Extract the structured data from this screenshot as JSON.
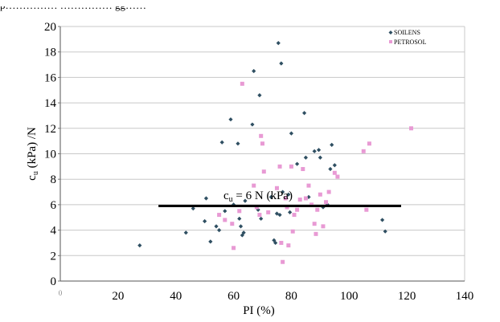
{
  "caption_fragment": "p…………… …………… gg……",
  "chart_data": {
    "type": "scatter",
    "title": "",
    "xlabel": "PI (%)",
    "ylabel_main": "c",
    "ylabel_sub": "u",
    "ylabel_rest": " (kPa) /N",
    "xlim": [
      0,
      140
    ],
    "ylim": [
      0,
      20
    ],
    "xticks": [
      0,
      20,
      40,
      60,
      80,
      100,
      120,
      140
    ],
    "yticks": [
      0,
      2,
      4,
      6,
      8,
      10,
      12,
      14,
      16,
      18,
      20
    ],
    "grid": "horizontal",
    "legend_position": "top-right",
    "series": [
      {
        "name": "SOILENS",
        "marker": "diamond",
        "color": "#2f4f62",
        "points": [
          [
            27.5,
            2.8
          ],
          [
            43.5,
            3.8
          ],
          [
            46.0,
            5.7
          ],
          [
            50.0,
            4.7
          ],
          [
            50.5,
            6.5
          ],
          [
            52.0,
            3.1
          ],
          [
            54.0,
            4.3
          ],
          [
            55.0,
            4.0
          ],
          [
            56.0,
            10.9
          ],
          [
            57.0,
            5.5
          ],
          [
            59.0,
            12.7
          ],
          [
            60.0,
            6.0
          ],
          [
            61.5,
            10.8
          ],
          [
            62.0,
            4.9
          ],
          [
            62.5,
            4.3
          ],
          [
            63.0,
            3.6
          ],
          [
            63.5,
            3.8
          ],
          [
            64.0,
            6.3
          ],
          [
            66.5,
            12.3
          ],
          [
            67.0,
            16.5
          ],
          [
            68.5,
            5.6
          ],
          [
            69.0,
            14.6
          ],
          [
            69.5,
            4.9
          ],
          [
            73.0,
            6.6
          ],
          [
            74.0,
            3.2
          ],
          [
            74.5,
            3.0
          ],
          [
            75.0,
            5.3
          ],
          [
            75.5,
            18.7
          ],
          [
            76.0,
            5.2
          ],
          [
            76.5,
            17.1
          ],
          [
            77.0,
            7.0
          ],
          [
            79.0,
            6.8
          ],
          [
            79.5,
            5.4
          ],
          [
            80.0,
            11.6
          ],
          [
            82.0,
            9.2
          ],
          [
            84.5,
            13.2
          ],
          [
            85.0,
            9.7
          ],
          [
            86.0,
            6.6
          ],
          [
            88.0,
            10.2
          ],
          [
            89.5,
            10.3
          ],
          [
            90.0,
            9.7
          ],
          [
            91.0,
            5.8
          ],
          [
            92.5,
            6.0
          ],
          [
            93.5,
            8.8
          ],
          [
            94.0,
            10.7
          ],
          [
            95.0,
            9.1
          ],
          [
            111.5,
            4.8
          ],
          [
            112.5,
            3.9
          ]
        ]
      },
      {
        "name": "PETROSOL",
        "marker": "square",
        "color": "#e89ad4",
        "points": [
          [
            55.0,
            5.2
          ],
          [
            57.0,
            4.8
          ],
          [
            59.5,
            4.5
          ],
          [
            60.0,
            2.6
          ],
          [
            62.0,
            5.5
          ],
          [
            63.0,
            15.5
          ],
          [
            67.0,
            7.5
          ],
          [
            68.0,
            5.8
          ],
          [
            69.0,
            5.2
          ],
          [
            69.5,
            11.4
          ],
          [
            70.0,
            10.8
          ],
          [
            70.5,
            8.6
          ],
          [
            72.0,
            5.4
          ],
          [
            75.0,
            7.3
          ],
          [
            76.0,
            9.0
          ],
          [
            76.5,
            3.0
          ],
          [
            77.0,
            1.5
          ],
          [
            78.0,
            6.5
          ],
          [
            78.5,
            5.8
          ],
          [
            79.0,
            2.8
          ],
          [
            80.0,
            9.0
          ],
          [
            80.5,
            3.9
          ],
          [
            81.0,
            5.2
          ],
          [
            82.0,
            5.6
          ],
          [
            83.0,
            6.4
          ],
          [
            84.0,
            8.8
          ],
          [
            85.0,
            6.5
          ],
          [
            86.0,
            7.5
          ],
          [
            87.0,
            6.0
          ],
          [
            88.0,
            4.5
          ],
          [
            88.5,
            3.7
          ],
          [
            89.0,
            5.6
          ],
          [
            90.0,
            6.8
          ],
          [
            91.0,
            4.3
          ],
          [
            92.0,
            6.2
          ],
          [
            93.0,
            7.0
          ],
          [
            95.0,
            8.5
          ],
          [
            96.0,
            8.2
          ],
          [
            105.0,
            10.2
          ],
          [
            106.0,
            5.6
          ],
          [
            107.0,
            10.8
          ],
          [
            121.5,
            12.0
          ]
        ]
      }
    ],
    "reference_line": {
      "label_c": "c",
      "label_sub": "u",
      "label_rest": " = 6 N (kPa)",
      "x_range": [
        34,
        118
      ],
      "y": 5.9
    }
  }
}
